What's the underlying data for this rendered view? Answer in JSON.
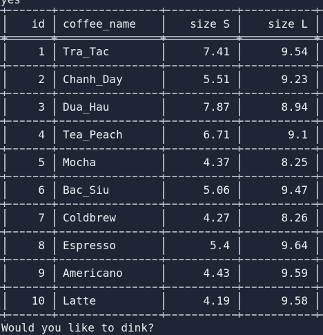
{
  "terminal": {
    "top_fragment": "yes",
    "prompt": "Would you like to dink?"
  },
  "table": {
    "headers": {
      "id": "id",
      "coffee_name": "coffee_name",
      "size_s": "size S",
      "size_l": "size L"
    },
    "rows": [
      {
        "id": "1",
        "coffee_name": "Tra_Tac",
        "size_s": "7.41",
        "size_l": "9.54"
      },
      {
        "id": "2",
        "coffee_name": "Chanh_Day",
        "size_s": "5.51",
        "size_l": "9.23"
      },
      {
        "id": "3",
        "coffee_name": "Dua_Hau",
        "size_s": "7.87",
        "size_l": "8.94"
      },
      {
        "id": "4",
        "coffee_name": "Tea_Peach",
        "size_s": "6.71",
        "size_l": "9.1"
      },
      {
        "id": "5",
        "coffee_name": "Mocha",
        "size_s": "4.37",
        "size_l": "8.25"
      },
      {
        "id": "6",
        "coffee_name": "Bac_Siu",
        "size_s": "5.06",
        "size_l": "9.47"
      },
      {
        "id": "7",
        "coffee_name": "Coldbrew",
        "size_s": "4.27",
        "size_l": "8.26"
      },
      {
        "id": "8",
        "coffee_name": "Espresso",
        "size_s": "5.4",
        "size_l": "9.64"
      },
      {
        "id": "9",
        "coffee_name": "Americano",
        "size_s": "4.43",
        "size_l": "9.59"
      },
      {
        "id": "10",
        "coffee_name": "Latte",
        "size_s": "4.19",
        "size_l": "9.58"
      }
    ]
  },
  "colors": {
    "background": "#1c2634",
    "text": "#e6e9ee",
    "border": "#c9d1db"
  }
}
